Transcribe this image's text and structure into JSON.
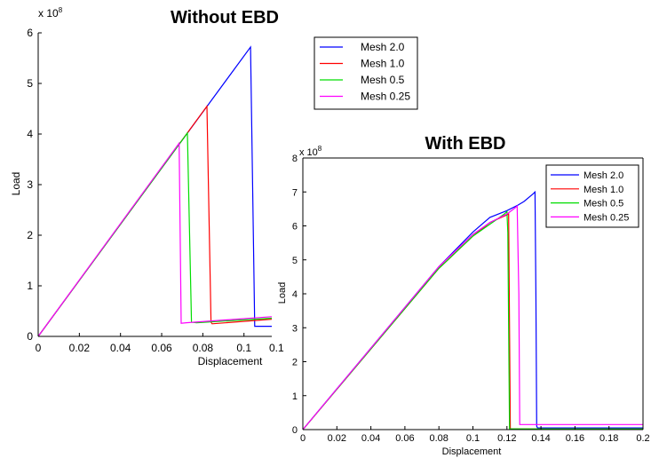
{
  "chart_data": [
    {
      "type": "line",
      "title": "Without EBD",
      "xlabel": "Displacement",
      "ylabel": "Load",
      "y_exponent": "x 10",
      "y_exponent_power": "8",
      "xlim": [
        0,
        0.11
      ],
      "ylim": [
        0,
        6
      ],
      "x_ticks": [
        "0",
        "0.02",
        "0.04",
        "0.06",
        "0.08",
        "0.1",
        "0.1"
      ],
      "x_tick_values": [
        0,
        0.02,
        0.04,
        0.06,
        0.08,
        0.1,
        0.12
      ],
      "y_ticks": [
        "0",
        "1",
        "2",
        "3",
        "4",
        "5",
        "6"
      ],
      "y_tick_values": [
        0,
        1,
        2,
        3,
        4,
        5,
        6
      ],
      "grid": false,
      "legend_position": "outside-top-right",
      "series": [
        {
          "name": "Mesh 2.0",
          "color": "#0000ff",
          "x": [
            0,
            0.1032,
            0.1052,
            0.1135
          ],
          "y": [
            0,
            5.72,
            0.2,
            0.2
          ]
        },
        {
          "name": "Mesh 1.0",
          "color": "#ff0000",
          "x": [
            0,
            0.082,
            0.084,
            0.0845,
            0.1135
          ],
          "y": [
            0,
            4.55,
            0.28,
            0.25,
            0.34
          ]
        },
        {
          "name": "Mesh 0.5",
          "color": "#00dd00",
          "x": [
            0,
            0.0725,
            0.0745,
            0.077,
            0.1135
          ],
          "y": [
            0,
            4.02,
            0.28,
            0.27,
            0.36
          ]
        },
        {
          "name": "Mesh 0.25",
          "color": "#ff00ff",
          "x": [
            0,
            0.0685,
            0.0695,
            0.072,
            0.1135
          ],
          "y": [
            0,
            3.82,
            0.26,
            0.27,
            0.39
          ]
        }
      ]
    },
    {
      "type": "line",
      "title": "With EBD",
      "xlabel": "Displacement",
      "ylabel": "Load",
      "y_exponent": "x 10",
      "y_exponent_power": "8",
      "xlim": [
        0,
        0.2
      ],
      "ylim": [
        0,
        8
      ],
      "x_ticks": [
        "0",
        "0.02",
        "0.04",
        "0.06",
        "0.08",
        "0.1",
        "0.12",
        "0.14",
        "0.16",
        "0.18",
        "0.2"
      ],
      "x_tick_values": [
        0,
        0.02,
        0.04,
        0.06,
        0.08,
        0.1,
        0.12,
        0.14,
        0.16,
        0.18,
        0.2
      ],
      "y_ticks": [
        "0",
        "1",
        "2",
        "3",
        "4",
        "5",
        "6",
        "7",
        "8"
      ],
      "y_tick_values": [
        0,
        1,
        2,
        3,
        4,
        5,
        6,
        7,
        8
      ],
      "grid": false,
      "legend_position": "top-right",
      "series": [
        {
          "name": "Mesh 2.0",
          "color": "#0000ff",
          "x": [
            0,
            0.08,
            0.1,
            0.11,
            0.12,
            0.126,
            0.13,
            0.1355,
            0.1365,
            0.137,
            0.1375,
            0.138,
            0.2
          ],
          "y": [
            0,
            4.8,
            5.82,
            6.25,
            6.45,
            6.6,
            6.72,
            6.95,
            7.0,
            4.0,
            0.1,
            0.05,
            0.05
          ]
        },
        {
          "name": "Mesh 1.0",
          "color": "#ff0000",
          "x": [
            0,
            0.08,
            0.1,
            0.11,
            0.119,
            0.121,
            0.122,
            0.2
          ],
          "y": [
            0,
            4.75,
            5.7,
            6.1,
            6.3,
            6.35,
            0.02,
            0.02
          ]
        },
        {
          "name": "Mesh 0.5",
          "color": "#00dd00",
          "x": [
            0,
            0.08,
            0.1,
            0.11,
            0.1185,
            0.12,
            0.1205,
            0.1215,
            0.2
          ],
          "y": [
            0,
            4.75,
            5.7,
            6.05,
            6.35,
            6.42,
            5.8,
            0.02,
            0.02
          ]
        },
        {
          "name": "Mesh 0.25",
          "color": "#ff00ff",
          "x": [
            0,
            0.08,
            0.1,
            0.11,
            0.12,
            0.124,
            0.126,
            0.127,
            0.1275,
            0.129,
            0.2
          ],
          "y": [
            0,
            4.8,
            5.75,
            6.1,
            6.35,
            6.5,
            6.58,
            4.0,
            0.15,
            0.15,
            0.15
          ]
        }
      ]
    }
  ]
}
